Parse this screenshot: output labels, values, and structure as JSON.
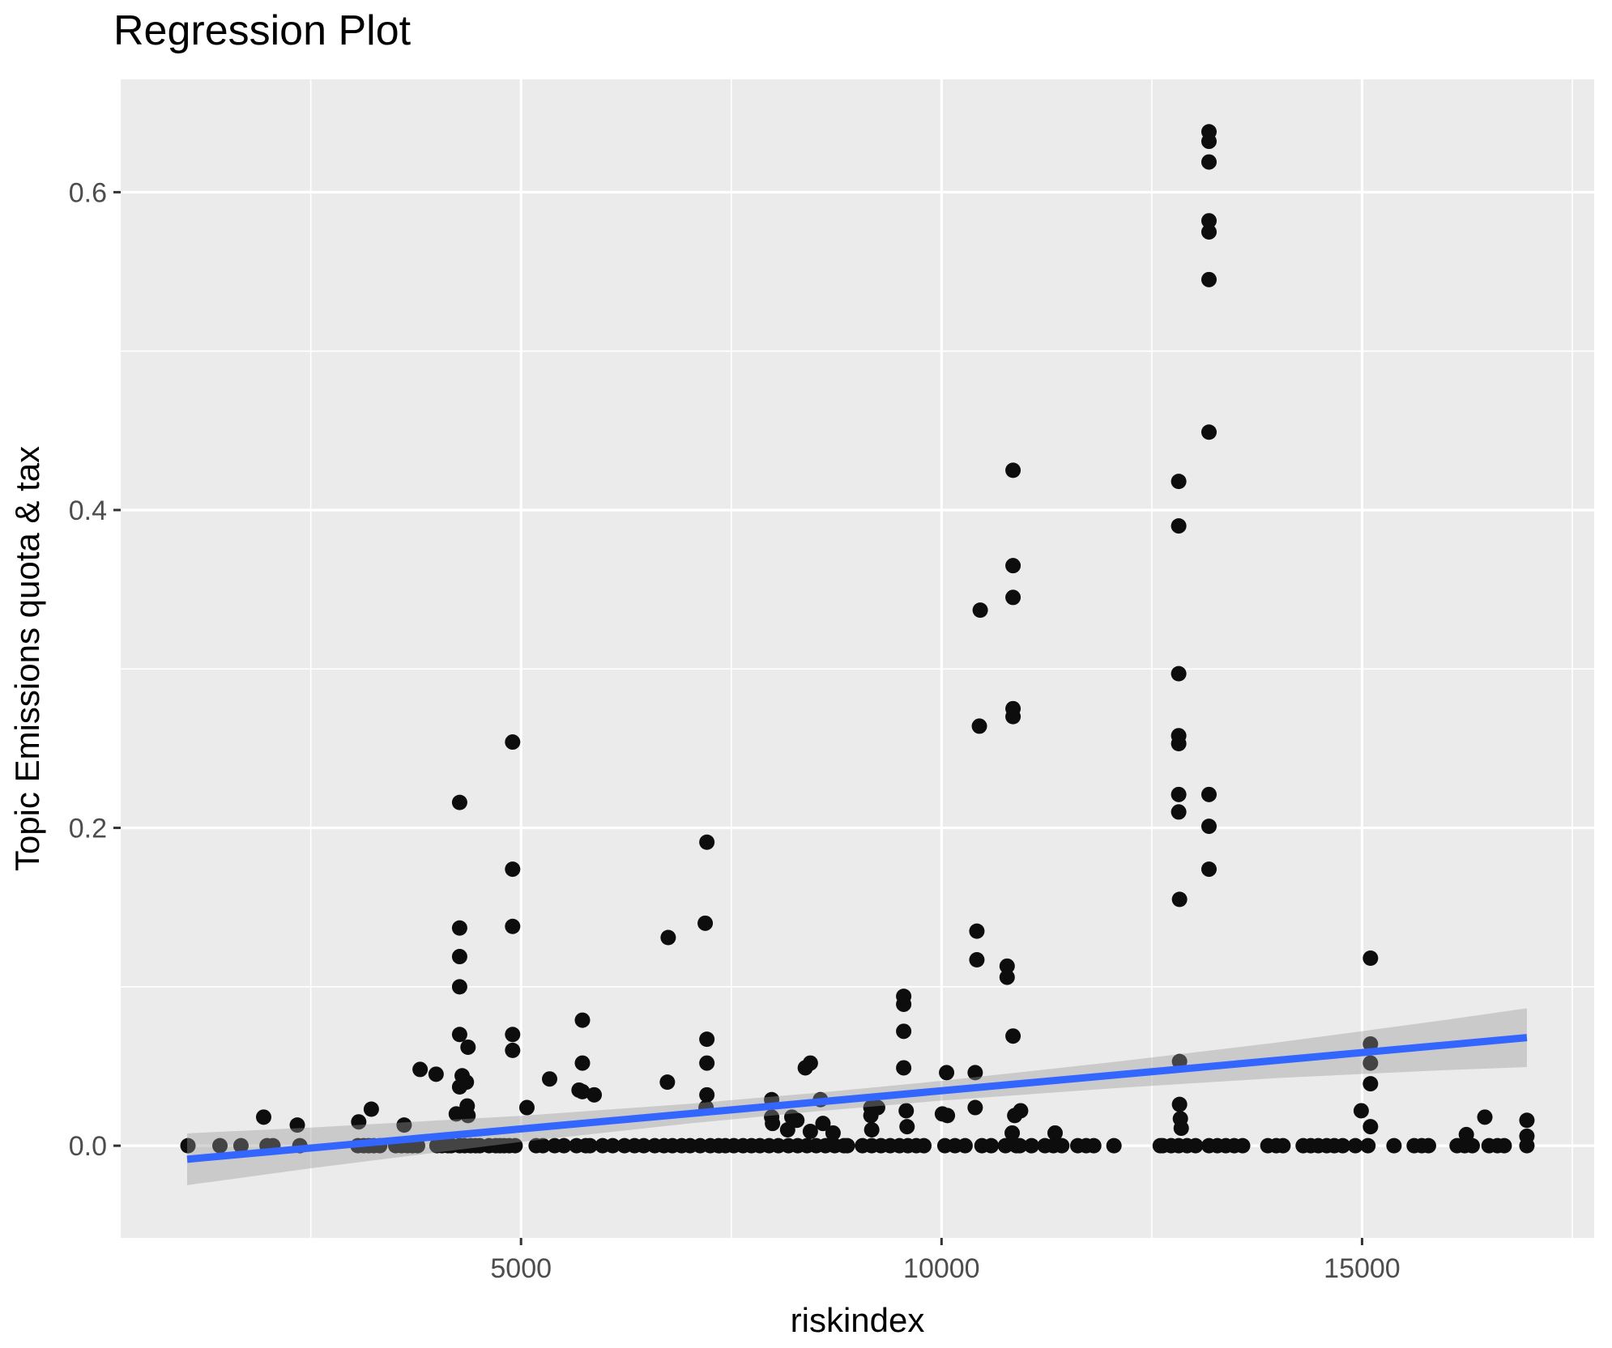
{
  "title": "Regression Plot",
  "chart_data": {
    "type": "scatter",
    "title": "Regression Plot",
    "xlabel": "riskindex",
    "ylabel": "Topic Emissions quota & tax",
    "legend": "none",
    "grid": true,
    "x_ticks": [
      5000,
      10000,
      15000
    ],
    "x_minor_ticks": [
      2500,
      7500,
      12500,
      17500
    ],
    "y_ticks": [
      0.0,
      0.2,
      0.4,
      0.6
    ],
    "y_minor_ticks": [
      0.1,
      0.3,
      0.5
    ],
    "x_domain": [
      240,
      17760
    ],
    "y_domain": [
      -0.058,
      0.671
    ],
    "colors": {
      "point": "#0D0D0D",
      "line": "#3366FF",
      "band": "#999999",
      "band_opacity": 0.4,
      "panel": "#EBEBEB",
      "grid": "#FFFFFF",
      "tick_label": "#4D4D4D",
      "tick_mark": "#333333",
      "axis_title": "#000000"
    },
    "regression_line": {
      "x1": 1030,
      "y1": -0.0085,
      "x2": 16960,
      "y2": 0.068
    },
    "confidence_band": {
      "x": [
        1030,
        2500,
        5000,
        7000,
        8500,
        10000,
        12000,
        14000,
        16000,
        16960
      ],
      "upper": [
        0.0078,
        0.0114,
        0.0188,
        0.0264,
        0.0332,
        0.0408,
        0.0524,
        0.065,
        0.0792,
        0.0865
      ],
      "lower": [
        -0.0248,
        -0.0142,
        0.0024,
        0.014,
        0.0216,
        0.0284,
        0.036,
        0.0426,
        0.0476,
        0.0495
      ]
    },
    "points": [
      [
        1040,
        0
      ],
      [
        1420,
        0
      ],
      [
        1670,
        0
      ],
      [
        1940,
        0.018
      ],
      [
        1980,
        0
      ],
      [
        2050,
        0
      ],
      [
        2340,
        0.013
      ],
      [
        2370,
        0
      ],
      [
        3060,
        0
      ],
      [
        3070,
        0.015
      ],
      [
        3130,
        0
      ],
      [
        3190,
        0
      ],
      [
        3220,
        0.023
      ],
      [
        3250,
        0
      ],
      [
        3320,
        0
      ],
      [
        3510,
        0
      ],
      [
        3580,
        0
      ],
      [
        3610,
        0.013
      ],
      [
        3650,
        0
      ],
      [
        3710,
        0
      ],
      [
        3770,
        0
      ],
      [
        3800,
        0.048
      ],
      [
        3990,
        0.045
      ],
      [
        4000,
        0
      ],
      [
        4060,
        0
      ],
      [
        4130,
        0
      ],
      [
        4170,
        0
      ],
      [
        4230,
        0.02
      ],
      [
        4270,
        0.216
      ],
      [
        4270,
        0.137
      ],
      [
        4270,
        0.119
      ],
      [
        4270,
        0.1
      ],
      [
        4270,
        0.07
      ],
      [
        4300,
        0.044
      ],
      [
        4350,
        0.04
      ],
      [
        4270,
        0.037
      ],
      [
        4360,
        0.025
      ],
      [
        4370,
        0.062
      ],
      [
        4370,
        0.019
      ],
      [
        4270,
        0
      ],
      [
        4330,
        0
      ],
      [
        4400,
        0
      ],
      [
        4460,
        0
      ],
      [
        4510,
        0
      ],
      [
        4620,
        0
      ],
      [
        4700,
        0
      ],
      [
        4750,
        0
      ],
      [
        4900,
        0.254
      ],
      [
        4900,
        0.174
      ],
      [
        4900,
        0.138
      ],
      [
        4900,
        0.07
      ],
      [
        4900,
        0.06
      ],
      [
        4800,
        0
      ],
      [
        4860,
        0
      ],
      [
        4930,
        0
      ],
      [
        5070,
        0.024
      ],
      [
        5180,
        0
      ],
      [
        5260,
        0
      ],
      [
        5340,
        0.042
      ],
      [
        5400,
        0
      ],
      [
        5510,
        0
      ],
      [
        5660,
        0
      ],
      [
        5690,
        0.035
      ],
      [
        5730,
        0.079
      ],
      [
        5730,
        0.052
      ],
      [
        5730,
        0.034
      ],
      [
        5770,
        0
      ],
      [
        5820,
        0
      ],
      [
        5870,
        0.032
      ],
      [
        5970,
        0
      ],
      [
        6090,
        0
      ],
      [
        6230,
        0
      ],
      [
        6350,
        0
      ],
      [
        6460,
        0
      ],
      [
        6590,
        0
      ],
      [
        6700,
        0
      ],
      [
        6800,
        0
      ],
      [
        6910,
        0
      ],
      [
        6740,
        0.04
      ],
      [
        6750,
        0.131
      ],
      [
        7010,
        0
      ],
      [
        7130,
        0
      ],
      [
        7190,
        0.14
      ],
      [
        7210,
        0.191
      ],
      [
        7210,
        0.067
      ],
      [
        7210,
        0.052
      ],
      [
        7210,
        0.032
      ],
      [
        7200,
        0.024
      ],
      [
        7250,
        0
      ],
      [
        7350,
        0
      ],
      [
        7430,
        0
      ],
      [
        7530,
        0
      ],
      [
        7640,
        0
      ],
      [
        7740,
        0
      ],
      [
        7840,
        0
      ],
      [
        7950,
        0
      ],
      [
        7980,
        0.029
      ],
      [
        7980,
        0.018
      ],
      [
        7990,
        0.014
      ],
      [
        8060,
        0
      ],
      [
        8170,
        0.01
      ],
      [
        8180,
        0
      ],
      [
        8220,
        0.018
      ],
      [
        8280,
        0.016
      ],
      [
        8290,
        0
      ],
      [
        8380,
        0.049
      ],
      [
        8400,
        0
      ],
      [
        8440,
        0.052
      ],
      [
        8440,
        0.009
      ],
      [
        8510,
        0
      ],
      [
        8560,
        0.029
      ],
      [
        8590,
        0.014
      ],
      [
        8620,
        0
      ],
      [
        8710,
        0.008
      ],
      [
        8730,
        0
      ],
      [
        8840,
        0
      ],
      [
        8880,
        0
      ],
      [
        9060,
        0
      ],
      [
        9160,
        0.024
      ],
      [
        9160,
        0.019
      ],
      [
        9170,
        0.01
      ],
      [
        9170,
        0
      ],
      [
        9240,
        0.024
      ],
      [
        9280,
        0
      ],
      [
        9390,
        0
      ],
      [
        9500,
        0
      ],
      [
        9550,
        0.094
      ],
      [
        9550,
        0.089
      ],
      [
        9550,
        0.072
      ],
      [
        9550,
        0.049
      ],
      [
        9580,
        0.022
      ],
      [
        9590,
        0.012
      ],
      [
        9600,
        0
      ],
      [
        9700,
        0
      ],
      [
        9790,
        0
      ],
      [
        10010,
        0.02
      ],
      [
        10040,
        0
      ],
      [
        10060,
        0.046
      ],
      [
        10070,
        0.019
      ],
      [
        10160,
        0
      ],
      [
        10280,
        0
      ],
      [
        10400,
        0.046
      ],
      [
        10400,
        0.024
      ],
      [
        10420,
        0.135
      ],
      [
        10420,
        0.117
      ],
      [
        10450,
        0.264
      ],
      [
        10460,
        0.337
      ],
      [
        10480,
        0
      ],
      [
        10590,
        0
      ],
      [
        10760,
        0
      ],
      [
        10780,
        0.113
      ],
      [
        10780,
        0.106
      ],
      [
        10840,
        0.008
      ],
      [
        10850,
        0.425
      ],
      [
        10850,
        0.365
      ],
      [
        10850,
        0.345
      ],
      [
        10850,
        0.275
      ],
      [
        10850,
        0.27
      ],
      [
        10850,
        0.069
      ],
      [
        10870,
        0.019
      ],
      [
        10890,
        0
      ],
      [
        10930,
        0
      ],
      [
        10940,
        0.022
      ],
      [
        11070,
        0
      ],
      [
        11230,
        0
      ],
      [
        11330,
        0
      ],
      [
        11350,
        0.008
      ],
      [
        11430,
        0
      ],
      [
        11620,
        0
      ],
      [
        11720,
        0
      ],
      [
        11810,
        0
      ],
      [
        12050,
        0
      ],
      [
        12600,
        0
      ],
      [
        12630,
        0
      ],
      [
        12730,
        0
      ],
      [
        12820,
        0.418
      ],
      [
        12820,
        0.39
      ],
      [
        12820,
        0.297
      ],
      [
        12820,
        0.258
      ],
      [
        12820,
        0.253
      ],
      [
        12820,
        0.221
      ],
      [
        12820,
        0.21
      ],
      [
        12830,
        0.155
      ],
      [
        12830,
        0.053
      ],
      [
        12830,
        0.026
      ],
      [
        12840,
        0.017
      ],
      [
        12850,
        0.011
      ],
      [
        12820,
        0
      ],
      [
        12920,
        0
      ],
      [
        13020,
        0
      ],
      [
        13180,
        0.638
      ],
      [
        13180,
        0.632
      ],
      [
        13180,
        0.619
      ],
      [
        13180,
        0.582
      ],
      [
        13180,
        0.575
      ],
      [
        13180,
        0.545
      ],
      [
        13180,
        0.449
      ],
      [
        13180,
        0.221
      ],
      [
        13180,
        0.201
      ],
      [
        13180,
        0.174
      ],
      [
        13180,
        0
      ],
      [
        13280,
        0
      ],
      [
        13380,
        0
      ],
      [
        13480,
        0
      ],
      [
        13580,
        0
      ],
      [
        13880,
        0
      ],
      [
        13980,
        0
      ],
      [
        14060,
        0
      ],
      [
        14300,
        0
      ],
      [
        14390,
        0
      ],
      [
        14480,
        0
      ],
      [
        14580,
        0
      ],
      [
        14670,
        0
      ],
      [
        14770,
        0
      ],
      [
        14920,
        0
      ],
      [
        14990,
        0.022
      ],
      [
        15100,
        0.118
      ],
      [
        15100,
        0.064
      ],
      [
        15100,
        0.052
      ],
      [
        15100,
        0.039
      ],
      [
        15100,
        0.012
      ],
      [
        15070,
        0
      ],
      [
        15380,
        0
      ],
      [
        15620,
        0
      ],
      [
        15710,
        0
      ],
      [
        15790,
        0
      ],
      [
        16130,
        0
      ],
      [
        16220,
        0
      ],
      [
        16240,
        0.007
      ],
      [
        16310,
        0
      ],
      [
        16460,
        0.018
      ],
      [
        16510,
        0
      ],
      [
        16610,
        0
      ],
      [
        16690,
        0
      ],
      [
        16960,
        0.016
      ],
      [
        16960,
        0.006
      ],
      [
        16960,
        0
      ]
    ]
  }
}
